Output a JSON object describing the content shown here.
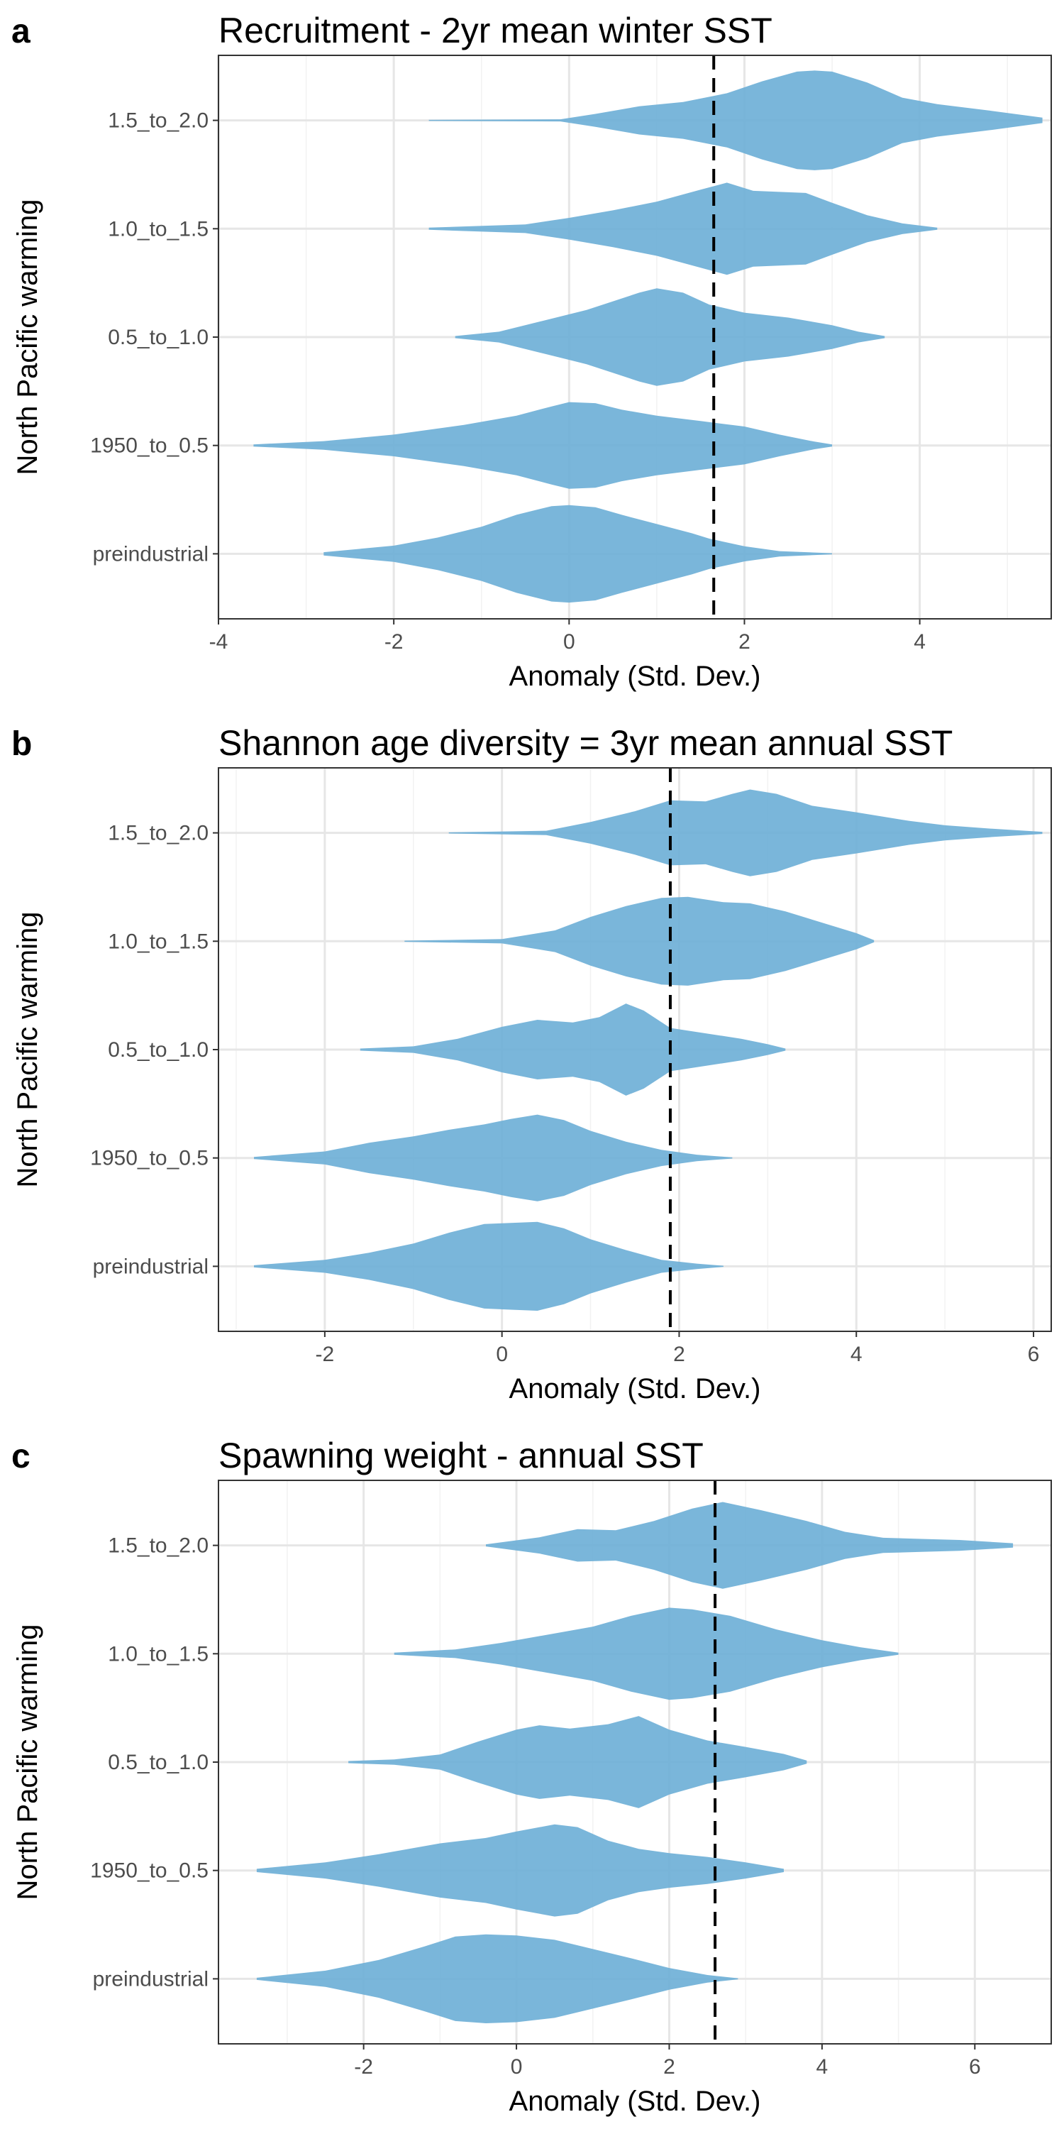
{
  "chart_data": [
    {
      "type": "violin",
      "panel_label": "a",
      "title": "Recruitment - 2yr mean winter SST",
      "xlabel": "Anomaly (Std. Dev.)",
      "ylabel": "North Pacific warming",
      "xlim": [
        -4,
        5.5
      ],
      "xticks": [
        -4,
        -2,
        0,
        2,
        4
      ],
      "categories": [
        "preindustrial",
        "1950_to_0.5",
        "0.5_to_1.0",
        "1.0_to_1.5",
        "1.5_to_2.0"
      ],
      "reference_line": 1.65,
      "grid": true,
      "series": [
        {
          "category": "preindustrial",
          "x": [
            -2.8,
            -2.0,
            -1.5,
            -1.0,
            -0.6,
            -0.2,
            0.0,
            0.3,
            0.6,
            1.0,
            1.4,
            1.6,
            2.0,
            2.4,
            3.0
          ],
          "density": [
            0.03,
            0.15,
            0.3,
            0.5,
            0.72,
            0.88,
            0.9,
            0.86,
            0.72,
            0.55,
            0.38,
            0.28,
            0.14,
            0.05,
            0.01
          ]
        },
        {
          "category": "1950_to_0.5",
          "x": [
            -3.6,
            -2.8,
            -2.0,
            -1.2,
            -0.6,
            -0.2,
            0.0,
            0.3,
            0.6,
            1.0,
            1.5,
            2.0,
            2.4,
            2.8,
            3.0
          ],
          "density": [
            0.02,
            0.08,
            0.2,
            0.38,
            0.55,
            0.72,
            0.8,
            0.78,
            0.66,
            0.55,
            0.45,
            0.35,
            0.2,
            0.07,
            0.02
          ]
        },
        {
          "category": "0.5_to_1.0",
          "x": [
            -1.3,
            -0.8,
            -0.3,
            0.2,
            0.5,
            0.8,
            1.0,
            1.3,
            1.6,
            2.0,
            2.5,
            3.0,
            3.3,
            3.6
          ],
          "density": [
            0.02,
            0.1,
            0.3,
            0.5,
            0.66,
            0.82,
            0.9,
            0.82,
            0.6,
            0.45,
            0.36,
            0.22,
            0.1,
            0.02
          ]
        },
        {
          "category": "1.0_to_1.5",
          "x": [
            -1.6,
            -0.5,
            0.0,
            0.5,
            1.0,
            1.5,
            1.8,
            2.1,
            2.4,
            2.7,
            3.0,
            3.4,
            3.8,
            4.2
          ],
          "density": [
            0.02,
            0.08,
            0.2,
            0.34,
            0.5,
            0.72,
            0.85,
            0.7,
            0.68,
            0.66,
            0.48,
            0.25,
            0.1,
            0.02
          ]
        },
        {
          "category": "1.5_to_2.0",
          "x": [
            -1.6,
            -0.1,
            0.3,
            0.8,
            1.3,
            1.8,
            2.2,
            2.6,
            2.8,
            3.0,
            3.4,
            3.8,
            4.2,
            4.8,
            5.4
          ],
          "density": [
            0.01,
            0.02,
            0.12,
            0.26,
            0.34,
            0.5,
            0.72,
            0.9,
            0.92,
            0.9,
            0.7,
            0.42,
            0.3,
            0.18,
            0.05
          ]
        }
      ]
    },
    {
      "type": "violin",
      "panel_label": "b",
      "title": "Shannon age diversity = 3yr mean annual SST",
      "xlabel": "Anomaly (Std. Dev.)",
      "ylabel": "North Pacific warming",
      "xlim": [
        -3.2,
        6.2
      ],
      "xticks": [
        -2,
        0,
        2,
        4,
        6
      ],
      "categories": [
        "preindustrial",
        "1950_to_0.5",
        "0.5_to_1.0",
        "1.0_to_1.5",
        "1.5_to_2.0"
      ],
      "reference_line": 1.9,
      "grid": true,
      "series": [
        {
          "category": "preindustrial",
          "x": [
            -2.8,
            -2.0,
            -1.5,
            -1.0,
            -0.6,
            -0.2,
            0.1,
            0.4,
            0.7,
            1.0,
            1.4,
            1.8,
            2.2,
            2.5
          ],
          "density": [
            0.02,
            0.12,
            0.25,
            0.42,
            0.62,
            0.78,
            0.8,
            0.82,
            0.7,
            0.5,
            0.3,
            0.12,
            0.05,
            0.01
          ]
        },
        {
          "category": "1950_to_0.5",
          "x": [
            -2.8,
            -2.0,
            -1.5,
            -1.0,
            -0.6,
            -0.2,
            0.1,
            0.4,
            0.7,
            1.0,
            1.4,
            1.8,
            2.2,
            2.6
          ],
          "density": [
            0.02,
            0.12,
            0.28,
            0.4,
            0.52,
            0.62,
            0.72,
            0.8,
            0.7,
            0.5,
            0.3,
            0.15,
            0.06,
            0.01
          ]
        },
        {
          "category": "0.5_to_1.0",
          "x": [
            -1.6,
            -1.0,
            -0.5,
            0.0,
            0.4,
            0.8,
            1.1,
            1.4,
            1.6,
            1.9,
            2.3,
            2.7,
            3.0,
            3.2
          ],
          "density": [
            0.02,
            0.06,
            0.2,
            0.42,
            0.55,
            0.5,
            0.6,
            0.85,
            0.72,
            0.4,
            0.3,
            0.2,
            0.1,
            0.02
          ]
        },
        {
          "category": "1.0_to_1.5",
          "x": [
            -1.1,
            0.0,
            0.6,
            1.0,
            1.4,
            1.8,
            2.1,
            2.5,
            2.8,
            3.2,
            3.6,
            4.0,
            4.2
          ],
          "density": [
            0.01,
            0.04,
            0.2,
            0.45,
            0.65,
            0.8,
            0.82,
            0.72,
            0.7,
            0.55,
            0.35,
            0.15,
            0.02
          ]
        },
        {
          "category": "1.5_to_2.0",
          "x": [
            -0.6,
            0.5,
            1.0,
            1.5,
            1.9,
            2.3,
            2.6,
            2.8,
            3.1,
            3.5,
            4.0,
            4.6,
            5.0,
            5.5,
            6.1
          ],
          "density": [
            0.01,
            0.04,
            0.2,
            0.4,
            0.6,
            0.58,
            0.72,
            0.8,
            0.72,
            0.5,
            0.38,
            0.22,
            0.14,
            0.08,
            0.02
          ]
        }
      ]
    },
    {
      "type": "violin",
      "panel_label": "c",
      "title": "Spawning weight - annual SST",
      "xlabel": "Anomaly (Std. Dev.)",
      "ylabel": "North Pacific warming",
      "xlim": [
        -3.9,
        7.0
      ],
      "xticks": [
        -2,
        0,
        2,
        4,
        6
      ],
      "categories": [
        "preindustrial",
        "1950_to_0.5",
        "0.5_to_1.0",
        "1.0_to_1.5",
        "1.5_to_2.0"
      ],
      "reference_line": 2.6,
      "grid": true,
      "series": [
        {
          "category": "preindustrial",
          "x": [
            -3.4,
            -2.5,
            -1.8,
            -1.2,
            -0.8,
            -0.4,
            0.0,
            0.5,
            1.0,
            1.5,
            2.0,
            2.5,
            2.9
          ],
          "density": [
            0.02,
            0.15,
            0.35,
            0.6,
            0.78,
            0.82,
            0.8,
            0.72,
            0.55,
            0.38,
            0.2,
            0.07,
            0.01
          ]
        },
        {
          "category": "1950_to_0.5",
          "x": [
            -3.4,
            -2.5,
            -1.8,
            -1.0,
            -0.4,
            0.0,
            0.5,
            0.8,
            1.2,
            1.6,
            2.0,
            2.5,
            3.0,
            3.5
          ],
          "density": [
            0.03,
            0.15,
            0.3,
            0.5,
            0.6,
            0.72,
            0.85,
            0.8,
            0.55,
            0.4,
            0.32,
            0.25,
            0.15,
            0.03
          ]
        },
        {
          "category": "0.5_to_1.0",
          "x": [
            -2.2,
            -1.6,
            -1.0,
            -0.5,
            0.0,
            0.3,
            0.7,
            1.2,
            1.6,
            2.0,
            2.5,
            3.0,
            3.5,
            3.8
          ],
          "density": [
            0.02,
            0.05,
            0.14,
            0.38,
            0.6,
            0.68,
            0.62,
            0.7,
            0.85,
            0.6,
            0.4,
            0.28,
            0.15,
            0.03
          ]
        },
        {
          "category": "1.0_to_1.5",
          "x": [
            -1.6,
            -0.8,
            -0.2,
            0.4,
            1.0,
            1.5,
            2.0,
            2.3,
            2.8,
            3.4,
            4.0,
            4.5,
            5.0
          ],
          "density": [
            0.02,
            0.08,
            0.2,
            0.35,
            0.5,
            0.7,
            0.85,
            0.82,
            0.7,
            0.45,
            0.25,
            0.12,
            0.02
          ]
        },
        {
          "category": "1.5_to_2.0",
          "x": [
            -0.4,
            0.3,
            0.8,
            1.3,
            1.8,
            2.3,
            2.7,
            3.2,
            3.8,
            4.3,
            4.8,
            5.3,
            5.8,
            6.5
          ],
          "density": [
            0.02,
            0.15,
            0.3,
            0.28,
            0.45,
            0.68,
            0.8,
            0.65,
            0.45,
            0.25,
            0.14,
            0.12,
            0.1,
            0.04
          ]
        }
      ]
    }
  ]
}
